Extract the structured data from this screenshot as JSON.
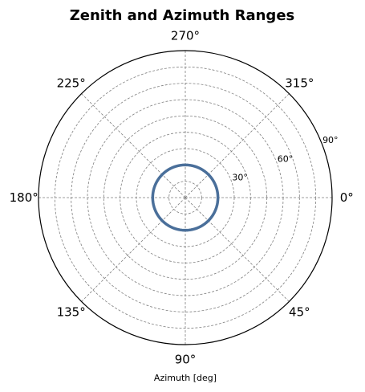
{
  "chart_data": {
    "type": "line",
    "projection": "polar",
    "title": "Zenith and Azimuth Ranges",
    "xlabel": "Azimuth [deg]",
    "theta_direction": "clockwise",
    "theta_zero": "east",
    "theta_ticks": [
      0,
      45,
      90,
      135,
      180,
      225,
      270,
      315
    ],
    "theta_tick_labels": [
      "0°",
      "45°",
      "90°",
      "135°",
      "180°",
      "225°",
      "270°",
      "315°"
    ],
    "rlim": [
      0,
      90
    ],
    "r_gridlines": [
      10,
      20,
      30,
      40,
      50,
      60,
      70,
      80,
      90
    ],
    "r_tick_labels": [
      {
        "value": 30,
        "label": "30°"
      },
      {
        "value": 60,
        "label": "60°"
      },
      {
        "value": 90,
        "label": "90°"
      }
    ],
    "r_label_angle_deg": 22.5,
    "grid": true,
    "series": [
      {
        "color": "#4a6f9a",
        "r": 20,
        "theta_range": [
          0,
          360
        ]
      }
    ]
  },
  "colors": {
    "series": "#4a6f9a",
    "grid": "#808080",
    "frame": "#000000"
  }
}
